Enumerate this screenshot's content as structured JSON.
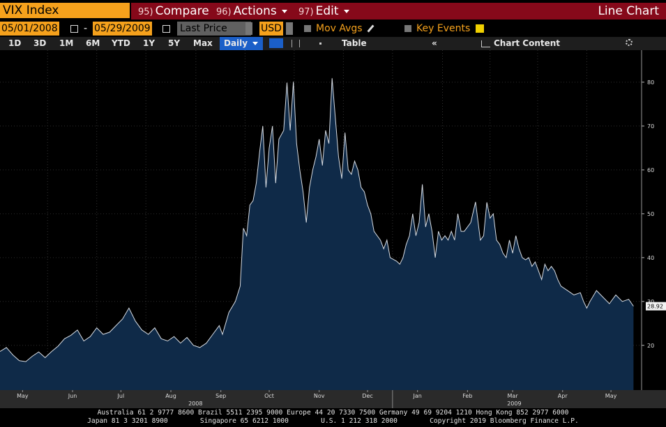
{
  "header": {
    "ticker": "VIX Index",
    "menu": [
      {
        "key": "95)",
        "label": "Compare"
      },
      {
        "key": "96)",
        "label": "Actions"
      },
      {
        "key": "97)",
        "label": "Edit"
      }
    ],
    "view": "Line Chart"
  },
  "controls": {
    "start_date": "05/01/2008",
    "separator": "-",
    "end_date": "05/29/2009",
    "field": "Last Price",
    "currency": "USD",
    "mov_avgs": "Mov Avgs",
    "key_events": "Key Events"
  },
  "toolbar": {
    "periods": [
      "1D",
      "3D",
      "1M",
      "6M",
      "YTD",
      "1Y",
      "5Y",
      "Max"
    ],
    "frequency": "Daily",
    "table": "Table",
    "collapse": "«",
    "chart_content": "Chart Content"
  },
  "chart_data": {
    "type": "area",
    "color": "#d8dde4",
    "fill": "#0f2a48",
    "grid": true,
    "x": [
      0,
      4,
      8,
      12,
      16,
      20,
      24,
      28,
      32,
      36,
      40,
      44,
      48,
      52,
      56,
      60,
      64,
      68,
      72,
      76,
      80,
      84,
      88,
      92,
      96,
      100,
      104,
      108,
      112,
      116,
      120,
      124,
      128,
      132,
      136,
      138,
      142,
      146,
      149,
      151,
      153,
      155,
      157,
      159,
      161,
      163,
      165,
      167,
      169,
      171,
      173,
      176,
      178,
      180,
      182,
      184,
      186,
      188,
      190,
      192,
      194,
      196,
      198,
      200,
      202,
      204,
      206,
      208,
      210,
      212,
      214,
      216,
      218,
      220,
      222,
      224,
      226,
      228,
      230,
      232,
      234,
      236,
      238,
      240,
      242,
      246,
      248,
      250,
      252,
      254,
      256,
      258,
      260,
      262,
      264,
      266,
      268,
      270,
      272,
      274,
      276,
      278,
      280,
      282,
      284,
      286,
      288,
      292,
      295,
      298,
      300,
      302,
      304,
      306,
      308,
      310,
      312,
      314,
      316,
      318,
      320,
      322,
      324,
      326,
      328,
      330,
      332,
      334,
      336,
      338,
      340,
      342,
      344,
      346,
      348,
      352,
      356,
      360,
      362,
      364,
      366,
      370,
      374,
      378,
      382,
      386,
      390,
      393
    ],
    "values": [
      18.6,
      19.5,
      17.8,
      16.5,
      16.3,
      17.5,
      18.5,
      17.2,
      18.6,
      19.8,
      21.5,
      22.3,
      23.5,
      21.0,
      22.0,
      24.0,
      22.5,
      23.0,
      24.5,
      26.0,
      28.5,
      25.5,
      23.5,
      22.5,
      24.0,
      21.5,
      21.0,
      22.0,
      20.5,
      21.8,
      20.0,
      19.5,
      20.5,
      22.5,
      24.5,
      22.5,
      27.5,
      30.0,
      33.5,
      46.7,
      45,
      52,
      53,
      57,
      64,
      70,
      56,
      65,
      70,
      57,
      67,
      69,
      79.9,
      69,
      80.1,
      66,
      60,
      55,
      48,
      56,
      60,
      63,
      67,
      61,
      69,
      66,
      80.9,
      72,
      63,
      58,
      68.5,
      60,
      59,
      62,
      60,
      56,
      55,
      52,
      50,
      46,
      45,
      44,
      42,
      44,
      40,
      39.2,
      38.5,
      40,
      43,
      45,
      50,
      45,
      48,
      56.7,
      47,
      50,
      46,
      40,
      46,
      44,
      45,
      44,
      46,
      44,
      50,
      46,
      46,
      48,
      52.7,
      44,
      45,
      52.6,
      49,
      50,
      44,
      43,
      41,
      40,
      44,
      41,
      45,
      42,
      40,
      39.5,
      40,
      38,
      39,
      37,
      35,
      38.5,
      37,
      38,
      37,
      35,
      33.5,
      32.5,
      31.5,
      32,
      30,
      28.5,
      30,
      32.5,
      31,
      29.5,
      31.5,
      30,
      30.5,
      28.92
    ],
    "xlim": [
      0,
      398
    ],
    "xticks": [
      {
        "value": 14,
        "label": "May"
      },
      {
        "value": 45,
        "label": "Jun"
      },
      {
        "value": 75,
        "label": "Jul"
      },
      {
        "value": 106,
        "label": "Aug"
      },
      {
        "value": 137,
        "label": "Sep"
      },
      {
        "value": 167,
        "label": "Oct"
      },
      {
        "value": 198,
        "label": "Nov"
      },
      {
        "value": 228,
        "label": "Dec"
      },
      {
        "value": 259,
        "label": "Jan"
      },
      {
        "value": 290,
        "label": "Feb"
      },
      {
        "value": 318,
        "label": "Mar"
      },
      {
        "value": 349,
        "label": "Apr"
      },
      {
        "value": 379,
        "label": "May"
      }
    ],
    "year_labels": [
      "2008",
      "2009"
    ],
    "ylim": [
      9.8,
      87.3
    ],
    "yticks": [
      20,
      30,
      40,
      50,
      60,
      70,
      80
    ]
  },
  "footer": {
    "lines": [
      "Australia 61 2 9777 8600 Brazil 5511 2395 9000 Europe 44 20 7330 7500 Germany 49 69 9204 1210 Hong Kong 852 2977 6000",
      "Japan 81 3 3201 8900        Singapore 65 6212 1000        U.S. 1 212 318 2000        Copyright 2019 Bloomberg Finance L.P."
    ]
  }
}
